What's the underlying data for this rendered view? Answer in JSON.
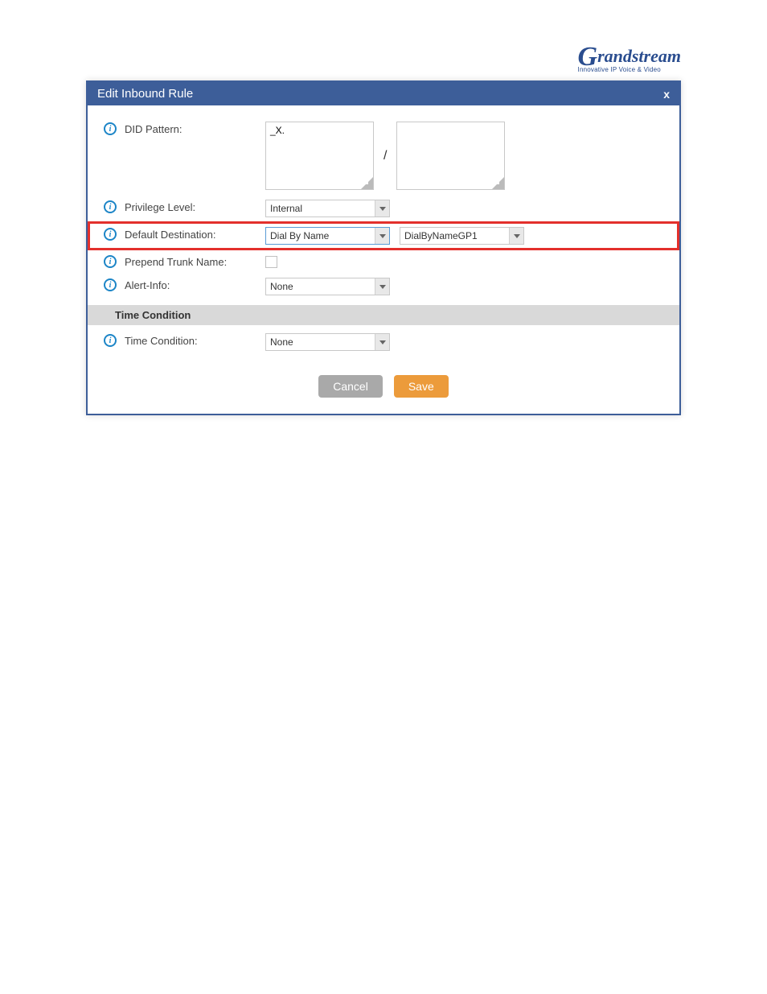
{
  "logo": {
    "main": "Grandstream",
    "sub": "Innovative IP Voice & Video"
  },
  "dialog": {
    "title": "Edit Inbound Rule",
    "close": "x"
  },
  "rows": {
    "did_pattern": {
      "label": "DID Pattern:",
      "textarea1_value": "_X.",
      "separator": "/",
      "textarea2_value": ""
    },
    "privilege_level": {
      "label": "Privilege Level:",
      "selected": "Internal"
    },
    "default_destination": {
      "label": "Default Destination:",
      "selected1": "Dial By Name",
      "selected2": "DialByNameGP1"
    },
    "prepend_trunk": {
      "label": "Prepend Trunk Name:",
      "checked": false
    },
    "alert_info": {
      "label": "Alert-Info:",
      "selected": "None"
    },
    "time_condition_section": "Time Condition",
    "time_condition": {
      "label": "Time Condition:",
      "selected": "None"
    }
  },
  "buttons": {
    "cancel": "Cancel",
    "save": "Save"
  },
  "colors": {
    "header_bg": "#3d5e99",
    "highlight_border": "#e3302c",
    "info_icon": "#1c85c7",
    "cancel_btn": "#a9a9a9",
    "save_btn": "#ec9b3b",
    "section_bg": "#d9d9d9",
    "logo_color": "#2a4d8f"
  }
}
